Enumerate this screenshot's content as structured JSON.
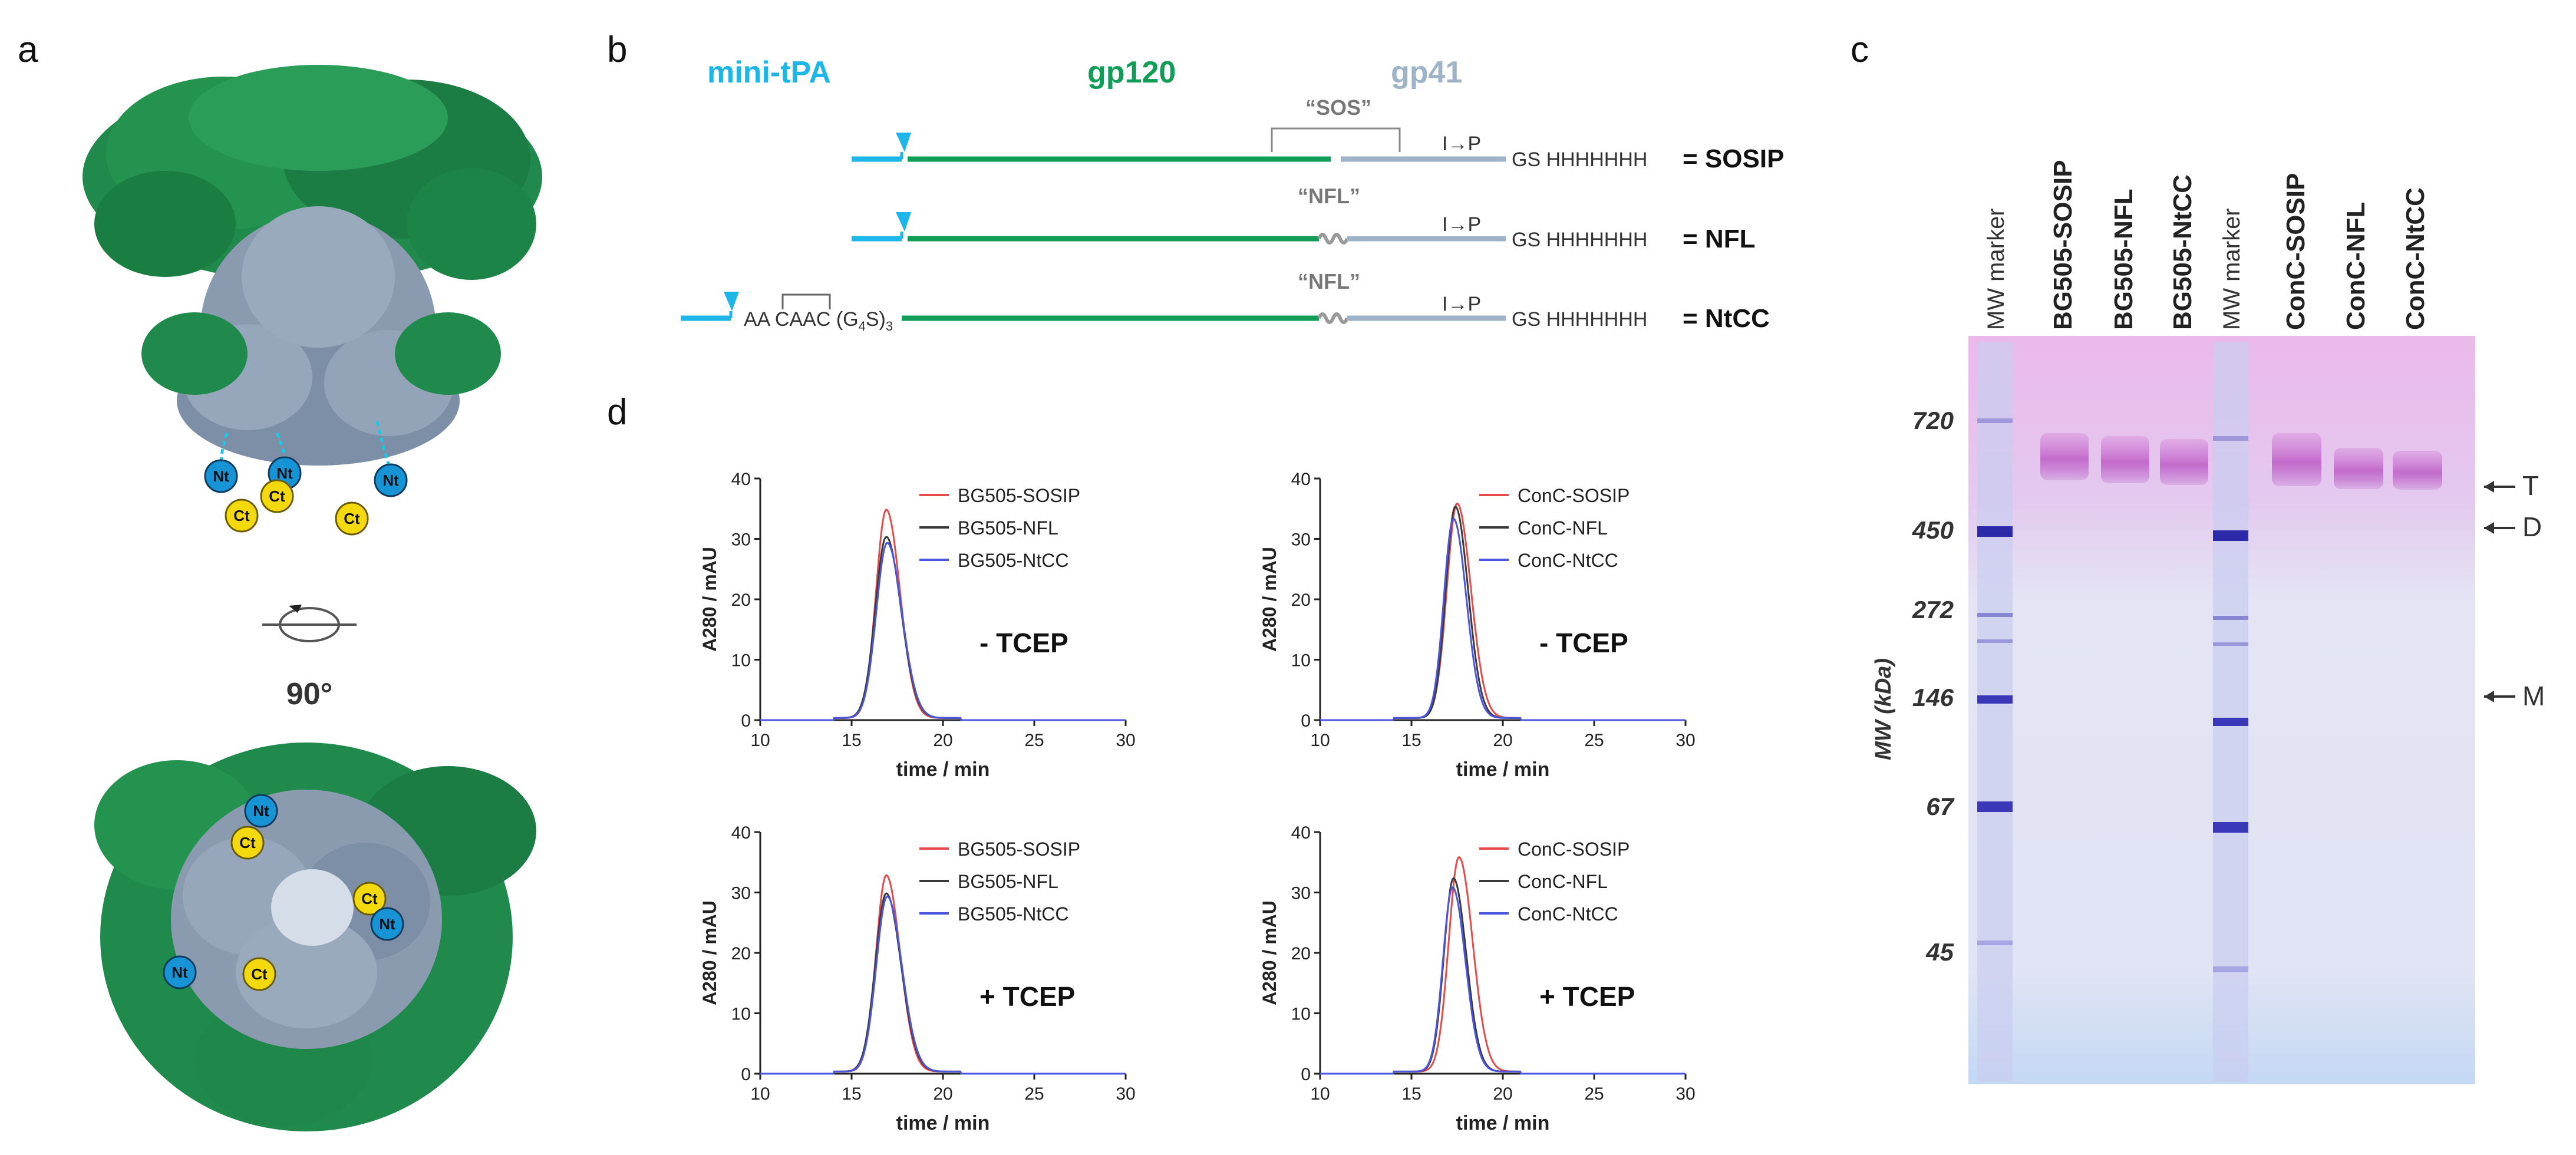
{
  "colors": {
    "mini_tpa": "#1cb6e9",
    "gp120": "#0f9d58",
    "gp41": "#9fb3c8",
    "protein_green": "#1f8a4c",
    "protein_gray": "#8a9bb0",
    "nt": "#1794d6",
    "ct": "#f4da0c",
    "series_sosip": "#e84a4a",
    "series_nfl": "#3a3a3a",
    "series_ntcc": "#4a55e0",
    "gel_bg": "#d8dcf4",
    "gel_top": "#e9b8e8",
    "band": "#5b56c8"
  },
  "panel_a": {
    "label": "a",
    "nt": "Nt",
    "ct": "Ct",
    "rotation": "90°",
    "icon": "rotate-icon"
  },
  "panel_b": {
    "label": "b",
    "header_mini_tpa": "mini-tPA",
    "header_gp120": "gp120",
    "header_gp41": "gp41",
    "constructs": [
      {
        "name": "= SOSIP",
        "bracket_label": "“SOS”",
        "mutation": "I→P",
        "tag": "GS HHHHHHH"
      },
      {
        "name": "= NFL",
        "bracket_label": "“NFL”",
        "mutation": "I→P",
        "tag": "GS HHHHHHH"
      },
      {
        "name": "= NtCC",
        "bracket_label": "“NFL”",
        "mutation": "I→P",
        "tag": "GS HHHHHHH",
        "prefix": "AA CAAC (G",
        "sub": "4",
        "mid": "S)",
        "sub2": "3"
      }
    ]
  },
  "panel_c": {
    "label": "c",
    "lanes": [
      "MW marker",
      "BG505-SOSIP",
      "BG505-NFL",
      "BG505-NtCC",
      "MW marker",
      "ConC-SOSIP",
      "ConC-NFL",
      "ConC-NtCC"
    ],
    "y_label": "MW (kDa)",
    "mw_ticks": [
      "720",
      "450",
      "272",
      "146",
      "67",
      "45"
    ],
    "arrows": [
      "T",
      "D",
      "M"
    ]
  },
  "panel_d": {
    "label": "d",
    "chart_data": [
      {
        "type": "line",
        "title": "- TCEP",
        "xlabel": "time / min",
        "ylabel": "A280 / mAU",
        "xlim": [
          10,
          30
        ],
        "ylim": [
          0,
          40
        ],
        "xticks": [
          "10",
          "15",
          "20",
          "25",
          "30"
        ],
        "yticks": [
          "0",
          "10",
          "20",
          "30",
          "40"
        ],
        "series": [
          {
            "name": "BG505-SOSIP",
            "peak_x": 16.9,
            "peak_y": 34.5,
            "width": 0.75
          },
          {
            "name": "BG505-NFL",
            "peak_x": 16.9,
            "peak_y": 30.0,
            "width": 0.8
          },
          {
            "name": "BG505-NtCC",
            "peak_x": 16.95,
            "peak_y": 29.0,
            "width": 0.8
          }
        ]
      },
      {
        "type": "line",
        "title": "- TCEP",
        "xlabel": "time / min",
        "ylabel": "A280 / mAU",
        "xlim": [
          10,
          30
        ],
        "ylim": [
          0,
          40
        ],
        "xticks": [
          "10",
          "15",
          "20",
          "25",
          "30"
        ],
        "yticks": [
          "0",
          "10",
          "20",
          "30",
          "40"
        ],
        "series": [
          {
            "name": "ConC-SOSIP",
            "peak_x": 17.5,
            "peak_y": 35.5,
            "width": 0.75
          },
          {
            "name": "ConC-NFL",
            "peak_x": 17.4,
            "peak_y": 35.0,
            "width": 0.7
          },
          {
            "name": "ConC-NtCC",
            "peak_x": 17.3,
            "peak_y": 33.0,
            "width": 0.7
          }
        ]
      },
      {
        "type": "line",
        "title": "+ TCEP",
        "xlabel": "time / min",
        "ylabel": "A280 / mAU",
        "xlim": [
          10,
          30
        ],
        "ylim": [
          0,
          40
        ],
        "xticks": [
          "10",
          "15",
          "20",
          "25",
          "30"
        ],
        "yticks": [
          "0",
          "10",
          "20",
          "30",
          "40"
        ],
        "series": [
          {
            "name": "BG505-SOSIP",
            "peak_x": 16.9,
            "peak_y": 32.5,
            "width": 0.75
          },
          {
            "name": "BG505-NFL",
            "peak_x": 16.9,
            "peak_y": 29.5,
            "width": 0.8
          },
          {
            "name": "BG505-NtCC",
            "peak_x": 16.95,
            "peak_y": 29.0,
            "width": 0.8
          }
        ]
      },
      {
        "type": "line",
        "title": "+ TCEP",
        "xlabel": "time / min",
        "ylabel": "A280 / mAU",
        "xlim": [
          10,
          30
        ],
        "ylim": [
          0,
          40
        ],
        "xticks": [
          "10",
          "15",
          "20",
          "25",
          "30"
        ],
        "yticks": [
          "0",
          "10",
          "20",
          "30",
          "40"
        ],
        "series": [
          {
            "name": "ConC-SOSIP",
            "peak_x": 17.6,
            "peak_y": 35.5,
            "width": 0.75
          },
          {
            "name": "ConC-NFL",
            "peak_x": 17.3,
            "peak_y": 32.0,
            "width": 0.7
          },
          {
            "name": "ConC-NtCC",
            "peak_x": 17.25,
            "peak_y": 30.5,
            "width": 0.7
          }
        ]
      }
    ]
  }
}
